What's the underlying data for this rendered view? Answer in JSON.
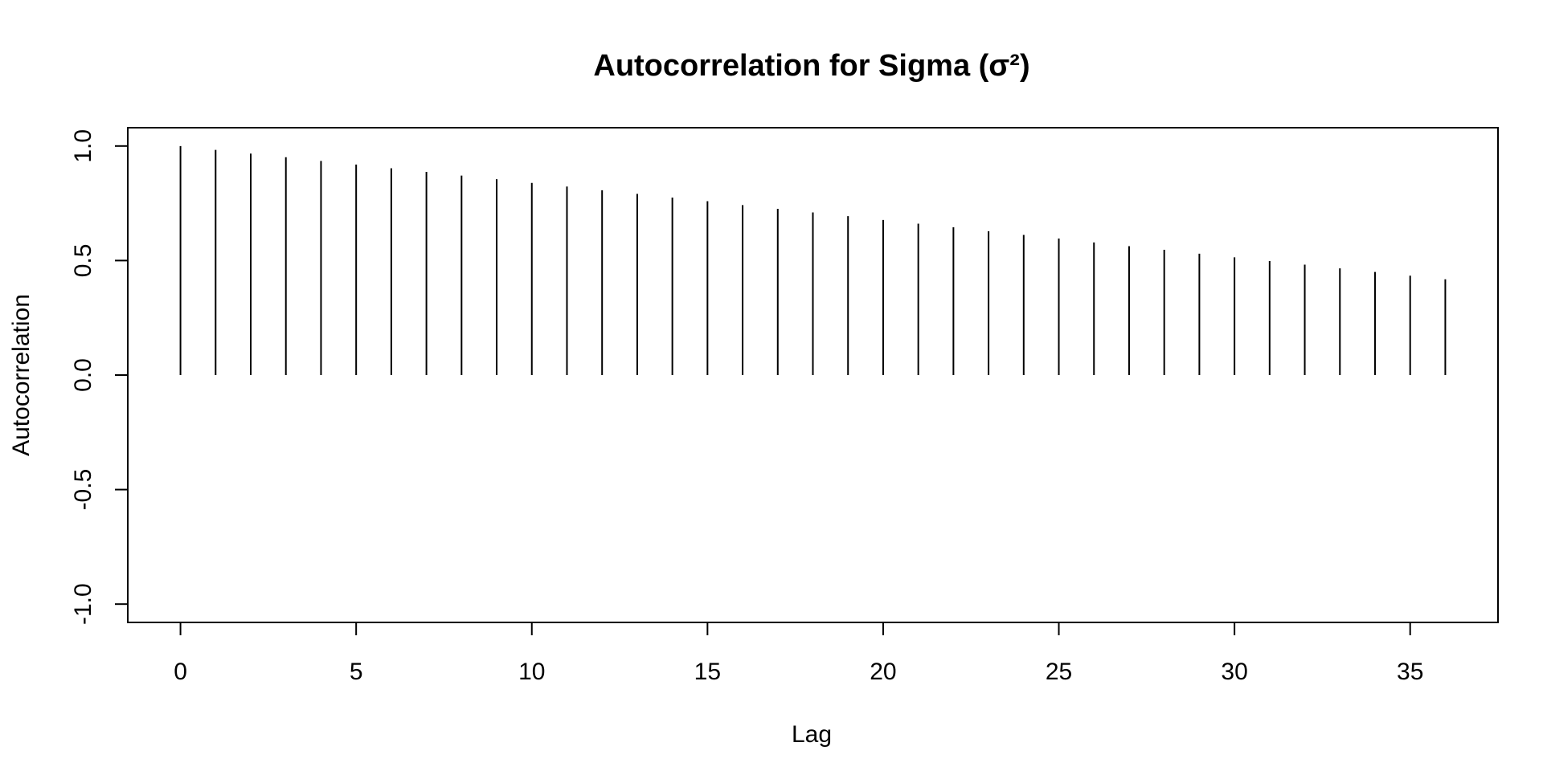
{
  "chart_data": {
    "type": "bar",
    "title": "Autocorrelation for Sigma (σ²)",
    "xlabel": "Lag",
    "ylabel": "Autocorrelation",
    "xlim": [
      -1.5,
      37.5
    ],
    "ylim": [
      -1.08,
      1.08
    ],
    "xticks": [
      0,
      5,
      10,
      15,
      20,
      25,
      30,
      35
    ],
    "yticks": [
      -1.0,
      -0.5,
      0.0,
      0.5,
      1.0
    ],
    "ytick_labels": [
      "-1.0",
      "-0.5",
      "0.0",
      "0.5",
      "1.0"
    ],
    "grid": false,
    "line_color": "#000000",
    "x": [
      0,
      1,
      2,
      3,
      4,
      5,
      6,
      7,
      8,
      9,
      10,
      11,
      12,
      13,
      14,
      15,
      16,
      17,
      18,
      19,
      20,
      21,
      22,
      23,
      24,
      25,
      26,
      27,
      28,
      29,
      30,
      31,
      32,
      33,
      34,
      35,
      36
    ],
    "values": [
      1.0,
      0.983,
      0.967,
      0.951,
      0.935,
      0.919,
      0.903,
      0.887,
      0.871,
      0.855,
      0.839,
      0.823,
      0.807,
      0.791,
      0.775,
      0.759,
      0.742,
      0.726,
      0.71,
      0.694,
      0.677,
      0.661,
      0.645,
      0.628,
      0.612,
      0.596,
      0.579,
      0.563,
      0.547,
      0.53,
      0.514,
      0.498,
      0.482,
      0.466,
      0.45,
      0.434,
      0.418
    ]
  }
}
